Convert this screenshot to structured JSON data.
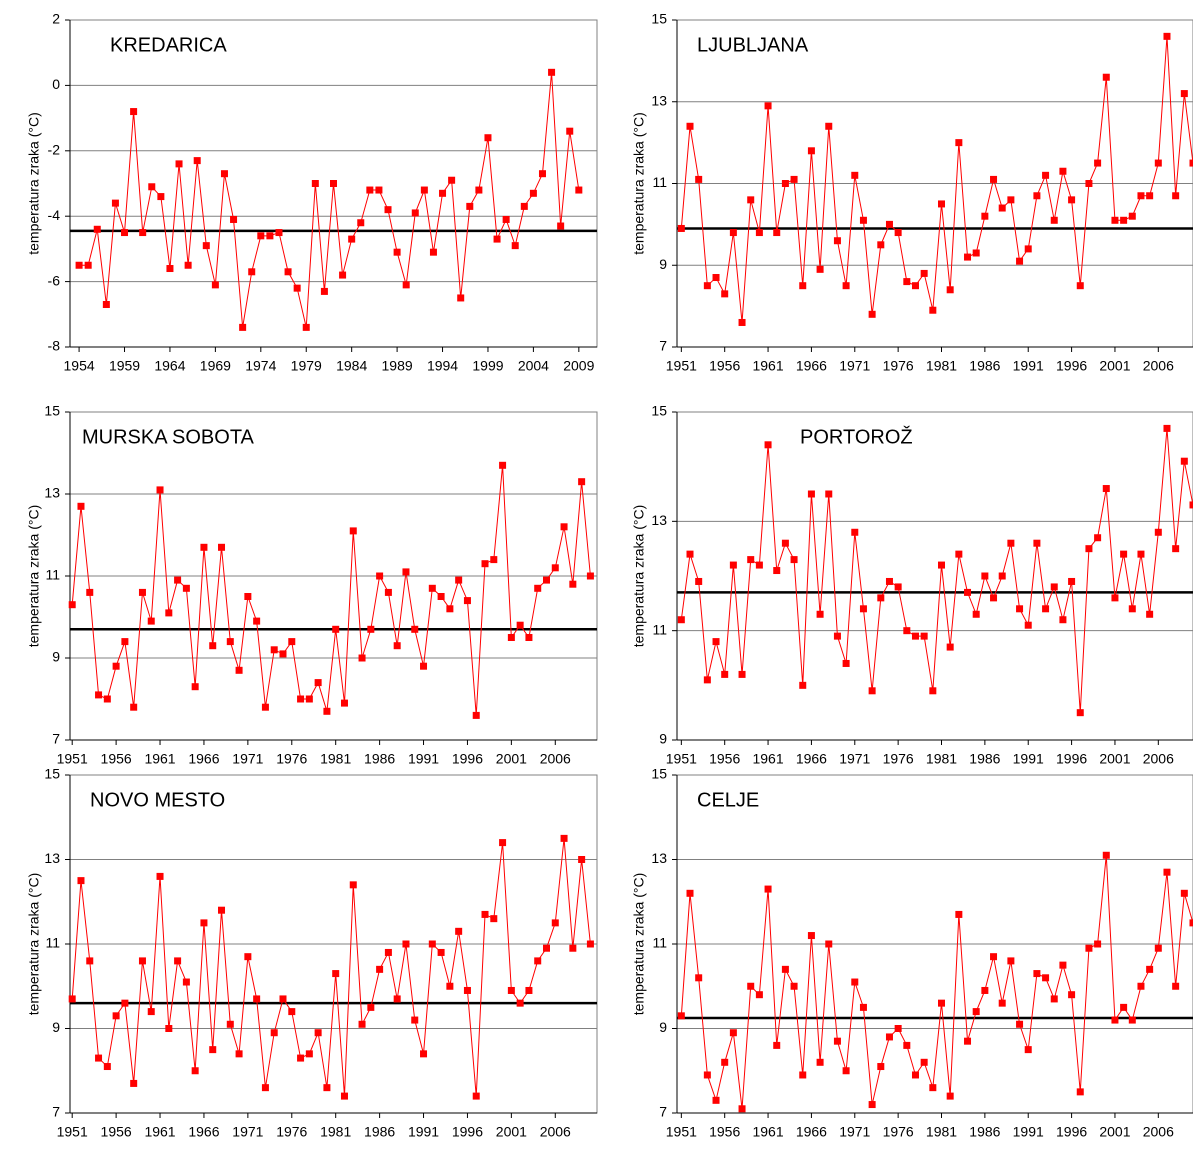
{
  "chart_data": [
    {
      "type": "line",
      "title": "KREDARICA",
      "ylabel": "temperatura zraka (°C)",
      "x": [
        1954,
        1955,
        1956,
        1957,
        1958,
        1959,
        1960,
        1961,
        1962,
        1963,
        1964,
        1965,
        1966,
        1967,
        1968,
        1969,
        1970,
        1971,
        1972,
        1973,
        1974,
        1975,
        1976,
        1977,
        1978,
        1979,
        1980,
        1981,
        1982,
        1983,
        1984,
        1985,
        1986,
        1987,
        1988,
        1989,
        1990,
        1991,
        1992,
        1993,
        1994,
        1995,
        1996,
        1997,
        1998,
        1999,
        2000,
        2001,
        2002,
        2003,
        2004,
        2005,
        2006,
        2007,
        2008,
        2009
      ],
      "series": [
        {
          "name": "KREDARICA",
          "color": "#ff0000",
          "values": [
            -5.5,
            -5.5,
            -4.4,
            -6.7,
            -3.6,
            -4.5,
            -0.8,
            -4.5,
            -3.1,
            -3.4,
            -5.6,
            -2.4,
            -5.5,
            -2.3,
            -4.9,
            -6.1,
            -2.7,
            -4.1,
            -7.4,
            -5.7,
            -4.6,
            -4.6,
            -4.5,
            -5.7,
            -6.2,
            -7.4,
            -3.0,
            -6.3,
            -3.0,
            -5.8,
            -4.7,
            -4.2,
            -3.2,
            -3.2,
            -3.8,
            -5.1,
            -6.1,
            -3.9,
            -3.2,
            -5.1,
            -3.3,
            -2.9,
            -6.5,
            -3.7,
            -3.2,
            -1.6,
            -4.7,
            -4.1,
            -4.9,
            -3.7,
            -3.3,
            -2.7,
            0.4,
            -4.3,
            -1.4,
            -3.2
          ]
        }
      ],
      "mean": -4.45,
      "mean_color": "#000000",
      "xlim": [
        1953,
        2011
      ],
      "xticks": [
        1954,
        1959,
        1964,
        1969,
        1974,
        1979,
        1984,
        1989,
        1994,
        1999,
        2004,
        2009
      ],
      "ylim": [
        -8,
        2
      ],
      "yticks": [
        -8,
        -6,
        -4,
        -2,
        0,
        2
      ],
      "grid": true
    },
    {
      "type": "line",
      "title": "LJUBLJANA",
      "ylabel": "temperatura zraka (°C)",
      "x": [
        1951,
        1952,
        1953,
        1954,
        1955,
        1956,
        1957,
        1958,
        1959,
        1960,
        1961,
        1962,
        1963,
        1964,
        1965,
        1966,
        1967,
        1968,
        1969,
        1970,
        1971,
        1972,
        1973,
        1974,
        1975,
        1976,
        1977,
        1978,
        1979,
        1980,
        1981,
        1982,
        1983,
        1984,
        1985,
        1986,
        1987,
        1988,
        1989,
        1990,
        1991,
        1992,
        1993,
        1994,
        1995,
        1996,
        1997,
        1998,
        1999,
        2000,
        2001,
        2002,
        2003,
        2004,
        2005,
        2006,
        2007,
        2008,
        2009,
        2010
      ],
      "series": [
        {
          "name": "LJUBLJANA",
          "color": "#ff0000",
          "values": [
            9.9,
            12.4,
            11.1,
            8.5,
            8.7,
            8.3,
            9.8,
            7.6,
            10.6,
            9.8,
            12.9,
            9.8,
            11.0,
            11.1,
            8.5,
            11.8,
            8.9,
            12.4,
            9.6,
            8.5,
            11.2,
            10.1,
            7.8,
            9.5,
            10.0,
            9.8,
            8.6,
            8.5,
            8.8,
            7.9,
            10.5,
            8.4,
            12.0,
            9.2,
            9.3,
            10.2,
            11.1,
            10.4,
            10.6,
            9.1,
            9.4,
            10.7,
            11.2,
            10.1,
            11.3,
            10.6,
            8.5,
            11.0,
            11.5,
            13.6,
            10.1,
            10.1,
            10.2,
            10.7,
            10.7,
            11.5,
            14.6,
            10.7,
            13.2,
            11.5
          ]
        }
      ],
      "mean": 9.9,
      "mean_color": "#000000",
      "xlim": [
        1950.5,
        2010
      ],
      "xticks": [
        1951,
        1956,
        1961,
        1966,
        1971,
        1976,
        1981,
        1986,
        1991,
        1996,
        2001,
        2006
      ],
      "ylim": [
        7,
        15
      ],
      "yticks": [
        7,
        9,
        11,
        13,
        15
      ],
      "grid": true
    },
    {
      "type": "line",
      "title": "MURSKA SOBOTA",
      "ylabel": "temperatura zraka (°C)",
      "x": [
        1951,
        1952,
        1953,
        1954,
        1955,
        1956,
        1957,
        1958,
        1959,
        1960,
        1961,
        1962,
        1963,
        1964,
        1965,
        1966,
        1967,
        1968,
        1969,
        1970,
        1971,
        1972,
        1973,
        1974,
        1975,
        1976,
        1977,
        1978,
        1979,
        1980,
        1981,
        1982,
        1983,
        1984,
        1985,
        1986,
        1987,
        1988,
        1989,
        1990,
        1991,
        1992,
        1993,
        1994,
        1995,
        1996,
        1997,
        1998,
        1999,
        2000,
        2001,
        2002,
        2003,
        2004,
        2005,
        2006,
        2007,
        2008,
        2009,
        2010
      ],
      "series": [
        {
          "name": "MURSKA SOBOTA",
          "color": "#ff0000",
          "values": [
            10.3,
            12.7,
            10.6,
            8.1,
            8.0,
            8.8,
            9.4,
            7.8,
            10.6,
            9.9,
            13.1,
            10.1,
            10.9,
            10.7,
            8.3,
            11.7,
            9.3,
            11.7,
            9.4,
            8.7,
            10.5,
            9.9,
            7.8,
            9.2,
            9.1,
            9.4,
            8.0,
            8.0,
            8.4,
            7.7,
            9.7,
            7.9,
            12.1,
            9.0,
            9.7,
            11.0,
            10.6,
            9.3,
            11.1,
            9.7,
            8.8,
            10.7,
            10.5,
            10.2,
            10.9,
            10.4,
            7.6,
            11.3,
            11.4,
            13.7,
            9.5,
            9.8,
            9.5,
            10.7,
            10.9,
            11.2,
            12.2,
            10.8,
            13.3,
            11.0
          ]
        }
      ],
      "mean": 9.7,
      "mean_color": "#000000",
      "xlim": [
        1950.75,
        2010.75
      ],
      "xticks": [
        1951,
        1956,
        1961,
        1966,
        1971,
        1976,
        1981,
        1986,
        1991,
        1996,
        2001,
        2006
      ],
      "ylim": [
        7,
        15
      ],
      "yticks": [
        7,
        9,
        11,
        13,
        15
      ],
      "grid": true
    },
    {
      "type": "line",
      "title": "PORTOROŽ",
      "ylabel": "temperatura zraka (°C)",
      "x": [
        1951,
        1952,
        1953,
        1954,
        1955,
        1956,
        1957,
        1958,
        1959,
        1960,
        1961,
        1962,
        1963,
        1964,
        1965,
        1966,
        1967,
        1968,
        1969,
        1970,
        1971,
        1972,
        1973,
        1974,
        1975,
        1976,
        1977,
        1978,
        1979,
        1980,
        1981,
        1982,
        1983,
        1984,
        1985,
        1986,
        1987,
        1988,
        1989,
        1990,
        1991,
        1992,
        1993,
        1994,
        1995,
        1996,
        1997,
        1998,
        1999,
        2000,
        2001,
        2002,
        2003,
        2004,
        2005,
        2006,
        2007,
        2008,
        2009,
        2010
      ],
      "series": [
        {
          "name": "PORTOROŽ",
          "color": "#ff0000",
          "values": [
            11.2,
            12.4,
            11.9,
            10.1,
            10.8,
            10.2,
            12.2,
            10.2,
            12.3,
            12.2,
            14.4,
            12.1,
            12.6,
            12.3,
            10.0,
            13.5,
            11.3,
            13.5,
            10.9,
            10.4,
            12.8,
            11.4,
            9.9,
            11.6,
            11.9,
            11.8,
            11.0,
            10.9,
            10.9,
            9.9,
            12.2,
            10.7,
            12.4,
            11.7,
            11.3,
            12.0,
            11.6,
            12.0,
            12.6,
            11.4,
            11.1,
            12.6,
            11.4,
            11.8,
            11.2,
            11.9,
            9.5,
            12.5,
            12.7,
            13.6,
            11.6,
            12.4,
            11.4,
            12.4,
            11.3,
            12.8,
            14.7,
            12.5,
            14.1,
            13.3
          ]
        }
      ],
      "mean": 11.7,
      "mean_color": "#000000",
      "xlim": [
        1950.5,
        2010
      ],
      "xticks": [
        1951,
        1956,
        1961,
        1966,
        1971,
        1976,
        1981,
        1986,
        1991,
        1996,
        2001,
        2006
      ],
      "ylim": [
        9,
        15
      ],
      "yticks": [
        9,
        11,
        13,
        15
      ],
      "grid": true
    },
    {
      "type": "line",
      "title": "NOVO MESTO",
      "ylabel": "temperatura zraka (°C)",
      "x": [
        1951,
        1952,
        1953,
        1954,
        1955,
        1956,
        1957,
        1958,
        1959,
        1960,
        1961,
        1962,
        1963,
        1964,
        1965,
        1966,
        1967,
        1968,
        1969,
        1970,
        1971,
        1972,
        1973,
        1974,
        1975,
        1976,
        1977,
        1978,
        1979,
        1980,
        1981,
        1982,
        1983,
        1984,
        1985,
        1986,
        1987,
        1988,
        1989,
        1990,
        1991,
        1992,
        1993,
        1994,
        1995,
        1996,
        1997,
        1998,
        1999,
        2000,
        2001,
        2002,
        2003,
        2004,
        2005,
        2006,
        2007,
        2008,
        2009,
        2010
      ],
      "series": [
        {
          "name": "NOVO MESTO",
          "color": "#ff0000",
          "values": [
            9.7,
            12.5,
            10.6,
            8.3,
            8.1,
            9.3,
            9.6,
            7.7,
            10.6,
            9.4,
            12.6,
            9.0,
            10.6,
            10.1,
            8.0,
            11.5,
            8.5,
            11.8,
            9.1,
            8.4,
            10.7,
            9.7,
            7.6,
            8.9,
            9.7,
            9.4,
            8.3,
            8.4,
            8.9,
            7.6,
            10.3,
            7.4,
            12.4,
            9.1,
            9.5,
            10.4,
            10.8,
            9.7,
            11.0,
            9.2,
            8.4,
            11.0,
            10.8,
            10.0,
            11.3,
            9.9,
            7.4,
            11.7,
            11.6,
            13.4,
            9.9,
            9.6,
            9.9,
            10.6,
            10.9,
            11.5,
            13.5,
            10.9,
            13.0,
            11.0
          ]
        }
      ],
      "mean": 9.6,
      "mean_color": "#000000",
      "xlim": [
        1950.75,
        2010.75
      ],
      "xticks": [
        1951,
        1956,
        1961,
        1966,
        1971,
        1976,
        1981,
        1986,
        1991,
        1996,
        2001,
        2006
      ],
      "ylim": [
        7,
        15
      ],
      "yticks": [
        7,
        9,
        11,
        13,
        15
      ],
      "grid": true
    },
    {
      "type": "line",
      "title": "CELJE",
      "ylabel": "temperatura zraka (°C)",
      "x": [
        1951,
        1952,
        1953,
        1954,
        1955,
        1956,
        1957,
        1958,
        1959,
        1960,
        1961,
        1962,
        1963,
        1964,
        1965,
        1966,
        1967,
        1968,
        1969,
        1970,
        1971,
        1972,
        1973,
        1974,
        1975,
        1976,
        1977,
        1978,
        1979,
        1980,
        1981,
        1982,
        1983,
        1984,
        1985,
        1986,
        1987,
        1988,
        1989,
        1990,
        1991,
        1992,
        1993,
        1994,
        1995,
        1996,
        1997,
        1998,
        1999,
        2000,
        2001,
        2002,
        2003,
        2004,
        2005,
        2006,
        2007,
        2008,
        2009,
        2010
      ],
      "series": [
        {
          "name": "CELJE",
          "color": "#ff0000",
          "values": [
            9.3,
            12.2,
            10.2,
            7.9,
            7.3,
            8.2,
            8.9,
            7.1,
            10.0,
            9.8,
            12.3,
            8.6,
            10.4,
            10.0,
            7.9,
            11.2,
            8.2,
            11.0,
            8.7,
            8.0,
            10.1,
            9.5,
            7.2,
            8.1,
            8.8,
            9.0,
            8.6,
            7.9,
            8.2,
            7.6,
            9.6,
            7.4,
            11.7,
            8.7,
            9.4,
            9.9,
            10.7,
            9.6,
            10.6,
            9.1,
            8.5,
            10.3,
            10.2,
            9.7,
            10.5,
            9.8,
            7.5,
            10.9,
            11.0,
            13.1,
            9.2,
            9.5,
            9.2,
            10.0,
            10.4,
            10.9,
            12.7,
            10.0,
            12.2,
            11.5
          ]
        }
      ],
      "mean": 9.25,
      "mean_color": "#000000",
      "xlim": [
        1950.5,
        2010
      ],
      "xticks": [
        1951,
        1956,
        1961,
        1966,
        1971,
        1976,
        1981,
        1986,
        1991,
        1996,
        2001,
        2006
      ],
      "ylim": [
        7,
        15
      ],
      "yticks": [
        7,
        9,
        11,
        13,
        15
      ],
      "grid": true
    }
  ]
}
